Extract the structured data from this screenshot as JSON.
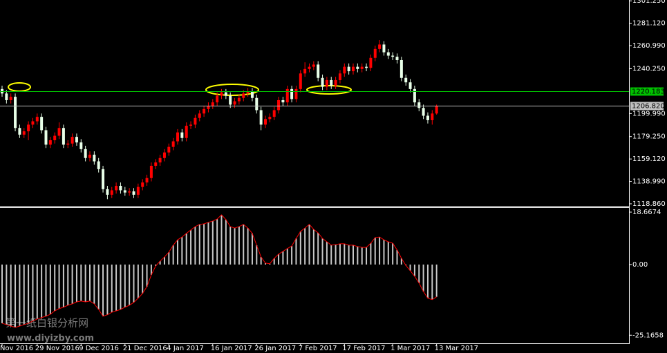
{
  "chart_data": [
    {
      "type": "candlestick",
      "categories": [
        "Nov 2016",
        null,
        null,
        null,
        null,
        null,
        null,
        null,
        "29 Nov 2016",
        null,
        null,
        null,
        null,
        null,
        null,
        null,
        null,
        null,
        "9 Dec 2016",
        null,
        null,
        null,
        null,
        null,
        null,
        null,
        null,
        null,
        "21 Dec 2016",
        null,
        null,
        null,
        null,
        null,
        null,
        null,
        null,
        null,
        "4 Jan 2017",
        null,
        null,
        null,
        null,
        null,
        null,
        null,
        null,
        null,
        "16 Jan 2017",
        null,
        null,
        null,
        null,
        null,
        null,
        null,
        null,
        null,
        "26 Jan 2017",
        null,
        null,
        null,
        null,
        null,
        null,
        null,
        null,
        null,
        "7 Feb 2017",
        null,
        null,
        null,
        null,
        null,
        null,
        null,
        null,
        null,
        "17 Feb 2017",
        null,
        null,
        null,
        null,
        null,
        null,
        null,
        null,
        null,
        null,
        "1 Mar 2017",
        null,
        null,
        null,
        null,
        null,
        null,
        null,
        null,
        null,
        "13 Mar 2017"
      ],
      "open": [
        1222,
        1218,
        1212,
        1215,
        1187,
        1181,
        1184,
        1190,
        1193,
        1197,
        1185,
        1172,
        1176,
        1180,
        1187,
        1172,
        1173,
        1179,
        1174,
        1168,
        1160,
        1163,
        1157,
        1150,
        1132,
        1127,
        1131,
        1135,
        1131,
        1129,
        1130,
        1127,
        1134,
        1138,
        1142,
        1153,
        1156,
        1160,
        1165,
        1170,
        1175,
        1183,
        1178,
        1189,
        1190,
        1196,
        1200,
        1204,
        1207,
        1210,
        1216,
        1219,
        1216,
        1208,
        1211,
        1214,
        1218,
        1220,
        1214,
        1203,
        1190,
        1195,
        1197,
        1203,
        1212,
        1210,
        1222,
        1213,
        1222,
        1236,
        1240,
        1242,
        1244,
        1232,
        1224,
        1230,
        1225,
        1230,
        1236,
        1242,
        1238,
        1242,
        1240,
        1242,
        1241,
        1250,
        1258,
        1262,
        1255,
        1252,
        1251,
        1248,
        1232,
        1228,
        1222,
        1210,
        1205,
        1198,
        1194,
        1200
      ],
      "high": [
        1225,
        1221,
        1218,
        1218,
        1190,
        1187,
        1193,
        1196,
        1200,
        1200,
        1188,
        1179,
        1183,
        1192,
        1190,
        1176,
        1182,
        1182,
        1177,
        1171,
        1166,
        1166,
        1160,
        1153,
        1135,
        1134,
        1138,
        1138,
        1134,
        1133,
        1133,
        1137,
        1141,
        1145,
        1156,
        1159,
        1163,
        1168,
        1173,
        1178,
        1186,
        1186,
        1192,
        1193,
        1199,
        1203,
        1207,
        1210,
        1213,
        1219,
        1222,
        1222,
        1219,
        1214,
        1217,
        1221,
        1223,
        1223,
        1217,
        1206,
        1198,
        1200,
        1206,
        1215,
        1215,
        1225,
        1225,
        1225,
        1239,
        1246,
        1245,
        1247,
        1247,
        1235,
        1233,
        1233,
        1233,
        1239,
        1245,
        1245,
        1245,
        1245,
        1245,
        1245,
        1253,
        1261,
        1266,
        1265,
        1258,
        1255,
        1254,
        1251,
        1235,
        1231,
        1225,
        1213,
        1208,
        1201,
        1203,
        1208
      ],
      "low": [
        1215,
        1209,
        1209,
        1184,
        1178,
        1178,
        1176,
        1187,
        1190,
        1182,
        1169,
        1169,
        1173,
        1177,
        1169,
        1169,
        1170,
        1171,
        1165,
        1157,
        1157,
        1154,
        1147,
        1129,
        1123,
        1124,
        1128,
        1128,
        1126,
        1126,
        1124,
        1124,
        1131,
        1135,
        1139,
        1150,
        1153,
        1157,
        1162,
        1167,
        1172,
        1175,
        1175,
        1186,
        1187,
        1193,
        1197,
        1201,
        1204,
        1207,
        1213,
        1213,
        1205,
        1205,
        1208,
        1211,
        1215,
        1211,
        1200,
        1185,
        1187,
        1192,
        1194,
        1200,
        1207,
        1207,
        1210,
        1210,
        1219,
        1233,
        1237,
        1239,
        1229,
        1221,
        1221,
        1222,
        1222,
        1227,
        1233,
        1235,
        1235,
        1237,
        1237,
        1238,
        1238,
        1247,
        1255,
        1252,
        1249,
        1248,
        1245,
        1229,
        1225,
        1219,
        1207,
        1202,
        1195,
        1191,
        1190,
        1199
      ],
      "close": [
        1218,
        1212,
        1215,
        1187,
        1181,
        1184,
        1190,
        1193,
        1197,
        1185,
        1172,
        1176,
        1180,
        1187,
        1172,
        1173,
        1179,
        1174,
        1168,
        1160,
        1163,
        1157,
        1150,
        1132,
        1127,
        1131,
        1135,
        1131,
        1129,
        1130,
        1127,
        1134,
        1138,
        1142,
        1153,
        1156,
        1160,
        1165,
        1170,
        1175,
        1183,
        1178,
        1189,
        1190,
        1196,
        1200,
        1204,
        1207,
        1210,
        1216,
        1219,
        1216,
        1208,
        1211,
        1214,
        1218,
        1220,
        1214,
        1203,
        1190,
        1195,
        1197,
        1203,
        1212,
        1210,
        1222,
        1213,
        1222,
        1236,
        1240,
        1242,
        1244,
        1232,
        1224,
        1230,
        1225,
        1230,
        1236,
        1242,
        1238,
        1242,
        1240,
        1242,
        1241,
        1250,
        1258,
        1262,
        1255,
        1252,
        1251,
        1248,
        1232,
        1228,
        1222,
        1210,
        1205,
        1198,
        1194,
        1200,
        1206.82
      ],
      "up_color": "#ff0000",
      "down_color": "#e8ffe8",
      "ylim": [
        1117,
        1302
      ],
      "yticks": [
        {
          "value": 1301.25,
          "label": "1301.250"
        },
        {
          "value": 1281.12,
          "label": "1281.120"
        },
        {
          "value": 1260.99,
          "label": "1260.990"
        },
        {
          "value": 1240.25,
          "label": "1240.250"
        },
        {
          "value": 1199.99,
          "label": "1199.990"
        },
        {
          "value": 1179.25,
          "label": "1179.250"
        },
        {
          "value": 1159.12,
          "label": "1159.120"
        },
        {
          "value": 1138.99,
          "label": "1138.990"
        },
        {
          "value": 1118.86,
          "label": "1118.860"
        }
      ],
      "hlines": [
        {
          "value": 1220.183,
          "label": "1220.183",
          "color": "#00c000"
        },
        {
          "value": 1206.82,
          "label": "1206.820",
          "color": "#c0c0c0"
        }
      ]
    },
    {
      "type": "bar",
      "values": [
        -20.9,
        -21.4,
        -21.9,
        -22.4,
        -21.9,
        -21.4,
        -20.9,
        -20.1,
        -19.4,
        -18.9,
        -18.4,
        -17.7,
        -16.5,
        -15.7,
        -15.2,
        -14.5,
        -14,
        -13.3,
        -13,
        -13.3,
        -13,
        -14,
        -16,
        -18.4,
        -17.9,
        -17,
        -16.5,
        -16,
        -15.2,
        -14.5,
        -13.5,
        -12,
        -10.3,
        -7.9,
        -3.7,
        -0.5,
        1.2,
        2.7,
        4.4,
        6.9,
        8.8,
        9.8,
        11.1,
        12.3,
        13.5,
        14.3,
        14.5,
        15,
        15.5,
        16.2,
        17.7,
        16,
        13.5,
        13,
        13.5,
        14.3,
        13,
        11.1,
        6.9,
        2.7,
        0.5,
        0.3,
        2.2,
        3.7,
        4.7,
        5.7,
        6.6,
        9.3,
        11.8,
        13,
        14.3,
        12.5,
        11.3,
        9.3,
        8.1,
        6.9,
        7.1,
        7.4,
        7.4,
        6.9,
        6.9,
        6.4,
        6.1,
        6.1,
        7.6,
        9.6,
        9.8,
        8.8,
        8.1,
        7.6,
        5.2,
        2.2,
        -0.3,
        -2.2,
        -4.2,
        -6.6,
        -9.6,
        -12,
        -12.5,
        -11.5
      ],
      "color": "#c8c8c8",
      "line_color": "#ff0000",
      "ylim": [
        -28.3,
        20.4
      ],
      "yticks": [
        18.6674,
        {
          "value": 0,
          "label": "0.00"
        },
        -25.1658
      ]
    }
  ],
  "watermark": [
    "第一纸白银分析网",
    "www.diyizby.com"
  ]
}
